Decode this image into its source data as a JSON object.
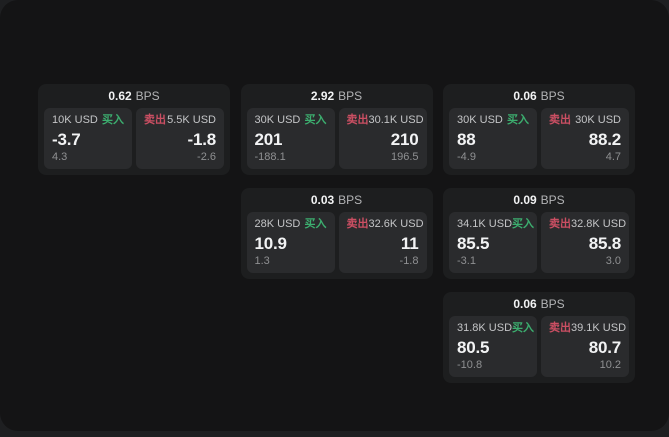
{
  "labels": {
    "buy": "买入",
    "sell": "卖出",
    "bps_unit": "BPS"
  },
  "colors": {
    "backdrop": "#1e1f21",
    "window_bg": "#141415",
    "card_bg": "#1d1e1f",
    "panel_bg": "#2a2b2d",
    "bright_text": "#f2f3f4",
    "label_text": "#c4c5c7",
    "dim_text": "#8f9092",
    "muted_text": "#b3b4b6",
    "buy_green": "#3cae6f",
    "sell_red": "#cb4f63"
  },
  "cards": [
    {
      "col": 0,
      "row": 0,
      "bps": "0.62",
      "buy": {
        "size": "10K USD",
        "value": "-3.7",
        "sub": "4.3"
      },
      "sell": {
        "size": "5.5K USD",
        "value": "-1.8",
        "sub": "-2.6"
      }
    },
    {
      "col": 1,
      "row": 0,
      "bps": "2.92",
      "buy": {
        "size": "30K USD",
        "value": "201",
        "sub": "-188.1"
      },
      "sell": {
        "size": "30.1K USD",
        "value": "210",
        "sub": "196.5"
      }
    },
    {
      "col": 2,
      "row": 0,
      "bps": "0.06",
      "buy": {
        "size": "30K USD",
        "value": "88",
        "sub": "-4.9"
      },
      "sell": {
        "size": "30K USD",
        "value": "88.2",
        "sub": "4.7"
      }
    },
    {
      "col": 1,
      "row": 1,
      "bps": "0.03",
      "buy": {
        "size": "28K USD",
        "value": "10.9",
        "sub": "1.3"
      },
      "sell": {
        "size": "32.6K USD",
        "value": "11",
        "sub": "-1.8"
      }
    },
    {
      "col": 2,
      "row": 1,
      "bps": "0.09",
      "buy": {
        "size": "34.1K USD",
        "value": "85.5",
        "sub": "-3.1"
      },
      "sell": {
        "size": "32.8K USD",
        "value": "85.8",
        "sub": "3.0"
      }
    },
    {
      "col": 2,
      "row": 2,
      "bps": "0.06",
      "buy": {
        "size": "31.8K USD",
        "value": "80.5",
        "sub": "-10.8"
      },
      "sell": {
        "size": "39.1K USD",
        "value": "80.7",
        "sub": "10.2"
      }
    }
  ]
}
